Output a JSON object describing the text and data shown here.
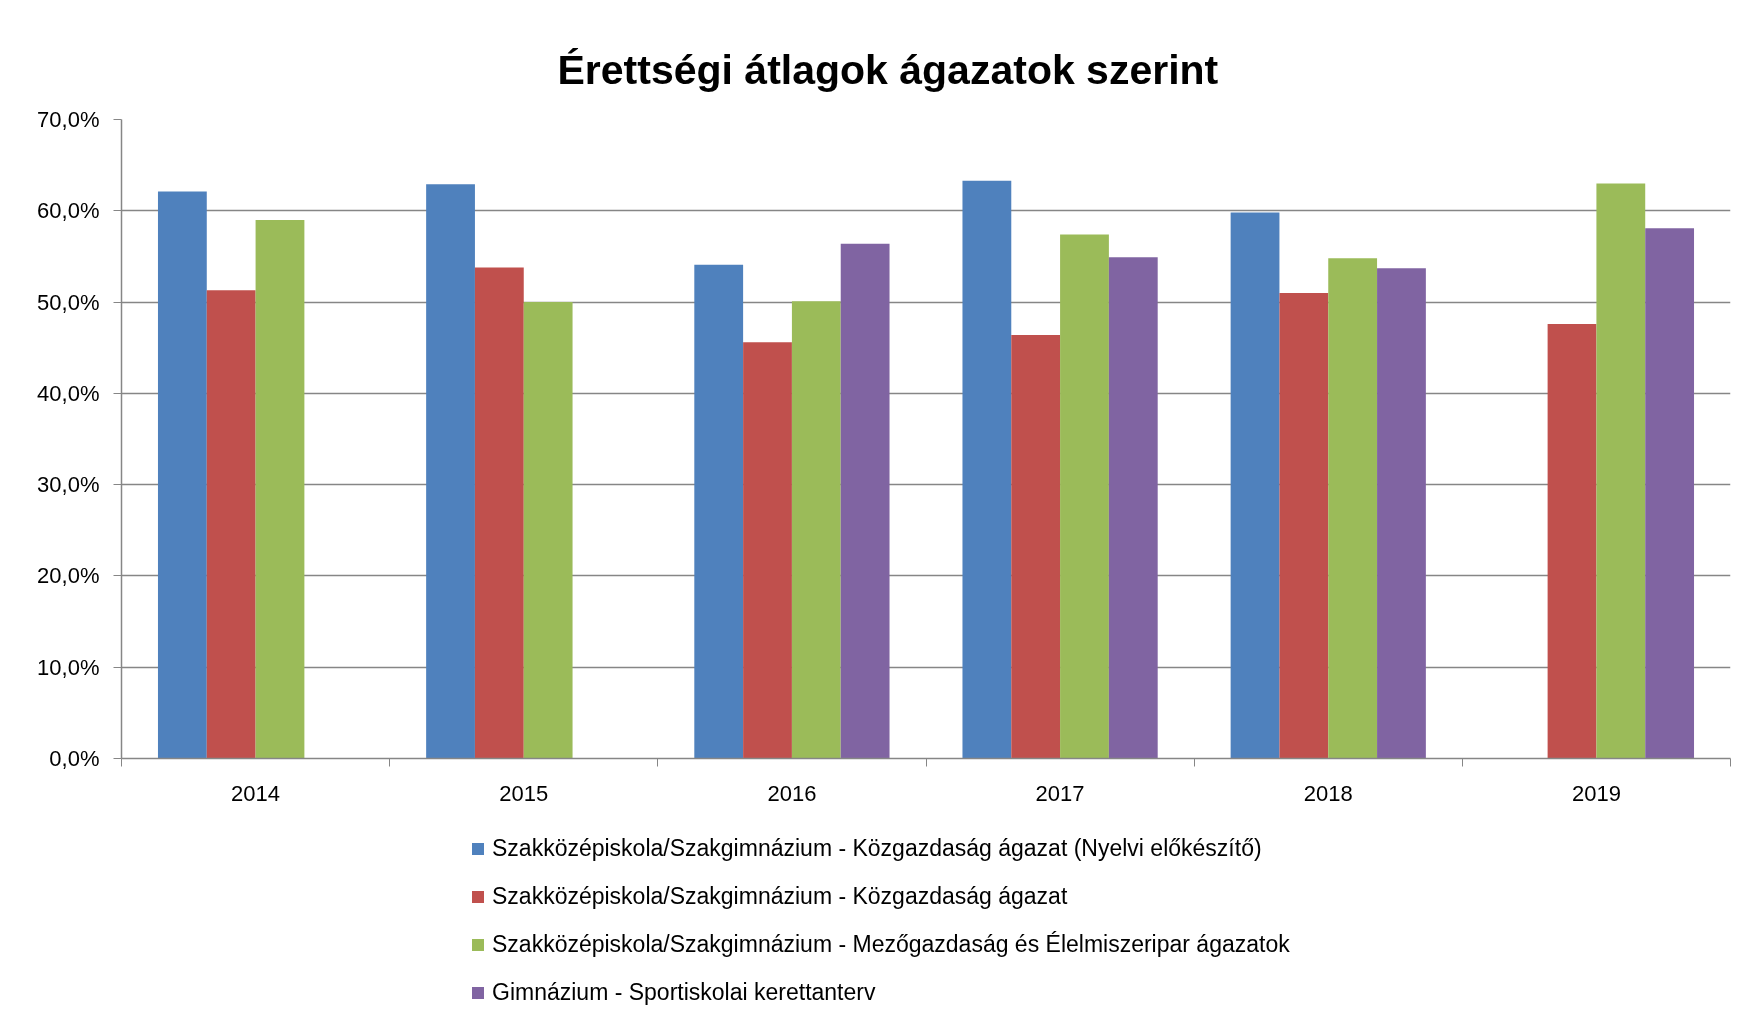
{
  "chart_data": {
    "type": "bar",
    "title": "Érettségi átlagok ágazatok szerint",
    "categories": [
      "2014",
      "2015",
      "2016",
      "2017",
      "2018",
      "2019"
    ],
    "series": [
      {
        "name": "Szakközépiskola/Szakgimnázium - Közgazdaság ágazat (Nyelvi előkészítő)",
        "color": "#4f81bd",
        "values": [
          62.1,
          62.9,
          54.1,
          63.3,
          59.8,
          null
        ]
      },
      {
        "name": "Szakközépiskola/Szakgimnázium - Közgazdaság ágazat",
        "color": "#c0504d",
        "values": [
          51.3,
          53.8,
          45.6,
          46.4,
          51.0,
          47.6
        ]
      },
      {
        "name": "Szakközépiskola/Szakgimnázium - Mezőgazdaság és Élelmiszeripar ágazatok",
        "color": "#9bbb59",
        "values": [
          59.0,
          50.0,
          50.1,
          57.4,
          54.8,
          63.0
        ]
      },
      {
        "name": "Gimnázium - Sportiskolai kerettanterv",
        "color": "#8064a2",
        "values": [
          null,
          null,
          56.4,
          54.9,
          53.7,
          58.1
        ]
      }
    ],
    "ylim": [
      0,
      70
    ],
    "yticks": [
      {
        "value": 0,
        "label": "0,0%"
      },
      {
        "value": 10,
        "label": "10,0%"
      },
      {
        "value": 20,
        "label": "20,0%"
      },
      {
        "value": 30,
        "label": "30,0%"
      },
      {
        "value": 40,
        "label": "40,0%"
      },
      {
        "value": 50,
        "label": "50,0%"
      },
      {
        "value": 60,
        "label": "60,0%"
      },
      {
        "value": 70,
        "label": "70,0%"
      }
    ],
    "grid": "y",
    "legend": "bottom"
  }
}
